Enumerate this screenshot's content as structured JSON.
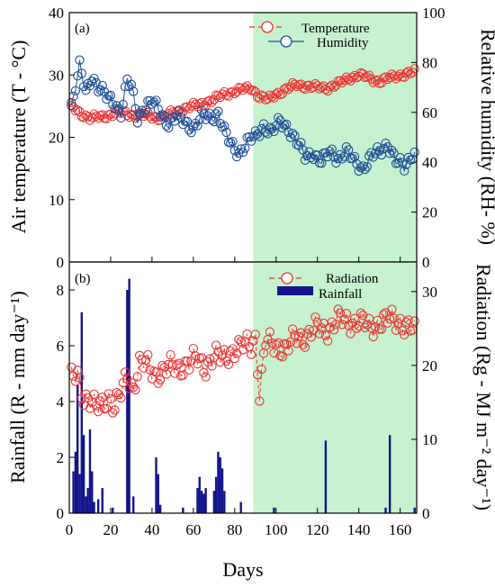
{
  "colors": {
    "shade": "#c6f2cf",
    "temperature": "#ee3333",
    "humidity": "#1f4f99",
    "radiation": "#ee3333",
    "rainfall": "#14148c"
  },
  "xlabel": "Days",
  "shade_start_day": 89,
  "chart_data": [
    {
      "type": "line",
      "panel_label": "(a)",
      "x_range": [
        0,
        168
      ],
      "x_ticks": [
        0,
        20,
        40,
        60,
        80,
        100,
        120,
        140,
        160
      ],
      "ylabel_left": "Air temperature (T - °C)",
      "ylabel_right": "Relative humidity (RH- %)",
      "ylim_left": [
        0,
        40
      ],
      "yticks_left": [
        0,
        10,
        20,
        30,
        40
      ],
      "ylim_right": [
        0,
        100
      ],
      "yticks_right": [
        0,
        20,
        40,
        60,
        80,
        100
      ],
      "legend_position": "top-right",
      "series": [
        {
          "name": "Temperature",
          "axis": "left",
          "marker": "open-circle",
          "line": "dashed",
          "control_points": [
            [
              1,
              25
            ],
            [
              5,
              24
            ],
            [
              10,
              23
            ],
            [
              18,
              23.5
            ],
            [
              25,
              24
            ],
            [
              32,
              23.5
            ],
            [
              38,
              23.5
            ],
            [
              45,
              23
            ],
            [
              50,
              24
            ],
            [
              55,
              24.5
            ],
            [
              60,
              25
            ],
            [
              65,
              25.5
            ],
            [
              70,
              26
            ],
            [
              75,
              27
            ],
            [
              82,
              27.5
            ],
            [
              88,
              28
            ],
            [
              92,
              26.5
            ],
            [
              96,
              26
            ],
            [
              100,
              27
            ],
            [
              104,
              27.5
            ],
            [
              110,
              28.5
            ],
            [
              118,
              28
            ],
            [
              125,
              28
            ],
            [
              130,
              28.5
            ],
            [
              135,
              29.5
            ],
            [
              140,
              30
            ],
            [
              145,
              29.5
            ],
            [
              150,
              29
            ],
            [
              155,
              29.5
            ],
            [
              160,
              30
            ],
            [
              168,
              30.5
            ]
          ]
        },
        {
          "name": "Humidity",
          "axis": "right",
          "marker": "open-circle",
          "line": "solid",
          "control_points": [
            [
              1,
              62
            ],
            [
              3,
              70
            ],
            [
              5,
              78
            ],
            [
              8,
              68
            ],
            [
              11,
              75
            ],
            [
              14,
              70
            ],
            [
              18,
              66
            ],
            [
              22,
              64
            ],
            [
              25,
              60
            ],
            [
              28,
              72
            ],
            [
              30,
              70
            ],
            [
              33,
              58
            ],
            [
              36,
              62
            ],
            [
              40,
              64
            ],
            [
              44,
              60
            ],
            [
              48,
              56
            ],
            [
              52,
              58
            ],
            [
              56,
              56
            ],
            [
              60,
              54
            ],
            [
              64,
              58
            ],
            [
              68,
              58
            ],
            [
              72,
              60
            ],
            [
              75,
              52
            ],
            [
              78,
              47
            ],
            [
              82,
              44
            ],
            [
              86,
              48
            ],
            [
              90,
              50
            ],
            [
              94,
              55
            ],
            [
              98,
              52
            ],
            [
              102,
              56
            ],
            [
              106,
              54
            ],
            [
              110,
              48
            ],
            [
              114,
              42
            ],
            [
              118,
              44
            ],
            [
              122,
              40
            ],
            [
              126,
              44
            ],
            [
              130,
              42
            ],
            [
              134,
              44
            ],
            [
              138,
              40
            ],
            [
              142,
              38
            ],
            [
              146,
              42
            ],
            [
              150,
              44
            ],
            [
              154,
              48
            ],
            [
              158,
              40
            ],
            [
              162,
              38
            ],
            [
              166,
              44
            ]
          ]
        }
      ]
    },
    {
      "type": "line",
      "panel_label": "(b)",
      "x_range": [
        0,
        168
      ],
      "x_ticks": [
        0,
        20,
        40,
        60,
        80,
        100,
        120,
        140,
        160
      ],
      "ylabel_left": "Rainfall (R - mm day⁻¹)",
      "ylabel_right": "Radiation (Rg - MJ m⁻² day⁻¹)",
      "ylim_left": [
        0,
        9
      ],
      "yticks_left": [
        0,
        2,
        4,
        6,
        8
      ],
      "ylim_right": [
        0,
        34
      ],
      "yticks_right": [
        0,
        10,
        20,
        30
      ],
      "legend_position": "top-right",
      "series": [
        {
          "name": "Radiation",
          "axis": "right",
          "marker": "open-circle",
          "line": "dashed",
          "control_points": [
            [
              1,
              18
            ],
            [
              4,
              19
            ],
            [
              7,
              16
            ],
            [
              10,
              15
            ],
            [
              13,
              14
            ],
            [
              16,
              15
            ],
            [
              19,
              16
            ],
            [
              22,
              14
            ],
            [
              25,
              16
            ],
            [
              28,
              19
            ],
            [
              31,
              17
            ],
            [
              34,
              20
            ],
            [
              38,
              20
            ],
            [
              42,
              19
            ],
            [
              46,
              19
            ],
            [
              50,
              20
            ],
            [
              54,
              20
            ],
            [
              58,
              20
            ],
            [
              62,
              21
            ],
            [
              66,
              20
            ],
            [
              70,
              21
            ],
            [
              74,
              21
            ],
            [
              78,
              22
            ],
            [
              82,
              22
            ],
            [
              86,
              23
            ],
            [
              88,
              23
            ],
            [
              90,
              24
            ],
            [
              92,
              16
            ],
            [
              95,
              23
            ],
            [
              100,
              23
            ],
            [
              105,
              22
            ],
            [
              110,
              24
            ],
            [
              115,
              24
            ],
            [
              120,
              25
            ],
            [
              125,
              25
            ],
            [
              130,
              26
            ],
            [
              135,
              26
            ],
            [
              140,
              26
            ],
            [
              145,
              25
            ],
            [
              150,
              26
            ],
            [
              155,
              26
            ],
            [
              160,
              26
            ],
            [
              165,
              25
            ],
            [
              168,
              24
            ]
          ]
        },
        {
          "name": "Rainfall",
          "axis": "left",
          "type": "bar",
          "values": [
            [
              2,
              1.5
            ],
            [
              3,
              2.2
            ],
            [
              4,
              4.6
            ],
            [
              5,
              1.4
            ],
            [
              6,
              7.2
            ],
            [
              7,
              2.8
            ],
            [
              8,
              0.6
            ],
            [
              9,
              0.9
            ],
            [
              10,
              3.0
            ],
            [
              11,
              1.5
            ],
            [
              12,
              0.4
            ],
            [
              14,
              0.5
            ],
            [
              16,
              0.9
            ],
            [
              21,
              0.2
            ],
            [
              28,
              8.0
            ],
            [
              29,
              8.4
            ],
            [
              31,
              0.6
            ],
            [
              42,
              2.0
            ],
            [
              43,
              1.4
            ],
            [
              44,
              0.3
            ],
            [
              55,
              0.2
            ],
            [
              62,
              0.9
            ],
            [
              63,
              1.3
            ],
            [
              64,
              0.8
            ],
            [
              65,
              0.7
            ],
            [
              66,
              0.9
            ],
            [
              70,
              0.8
            ],
            [
              71,
              1.3
            ],
            [
              72,
              2.2
            ],
            [
              73,
              2.0
            ],
            [
              74,
              1.6
            ],
            [
              75,
              0.8
            ],
            [
              83,
              0.4
            ],
            [
              99,
              0.2
            ],
            [
              124,
              2.6
            ],
            [
              153,
              0.2
            ],
            [
              155,
              2.8
            ],
            [
              167,
              0.2
            ]
          ]
        }
      ]
    }
  ]
}
